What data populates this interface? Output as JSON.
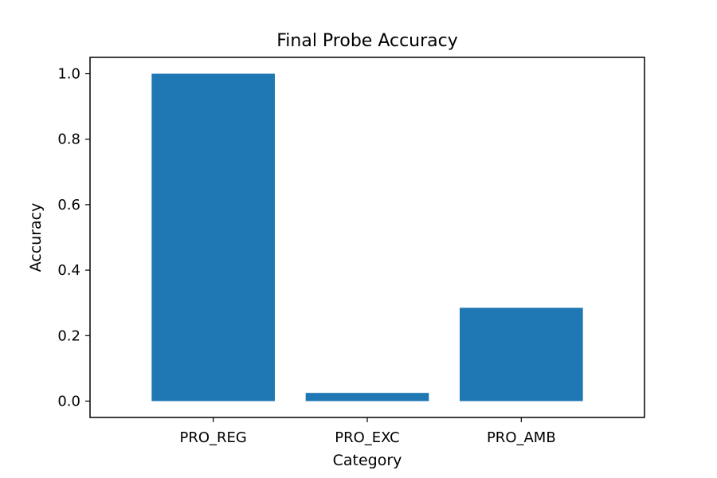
{
  "chart_data": {
    "type": "bar",
    "title": "Final Probe Accuracy",
    "xlabel": "Category",
    "ylabel": "Accuracy",
    "categories": [
      "PRO_REG",
      "PRO_EXC",
      "PRO_AMB"
    ],
    "values": [
      1.0,
      0.025,
      0.285
    ],
    "ylim": [
      -0.05,
      1.05
    ],
    "yticks": [
      0.0,
      0.2,
      0.4,
      0.6,
      0.8,
      1.0
    ],
    "ytick_labels": [
      "0.0",
      "0.2",
      "0.4",
      "0.6",
      "0.8",
      "1.0"
    ],
    "bar_color": "#1f77b4",
    "grid": false,
    "legend": "none"
  }
}
